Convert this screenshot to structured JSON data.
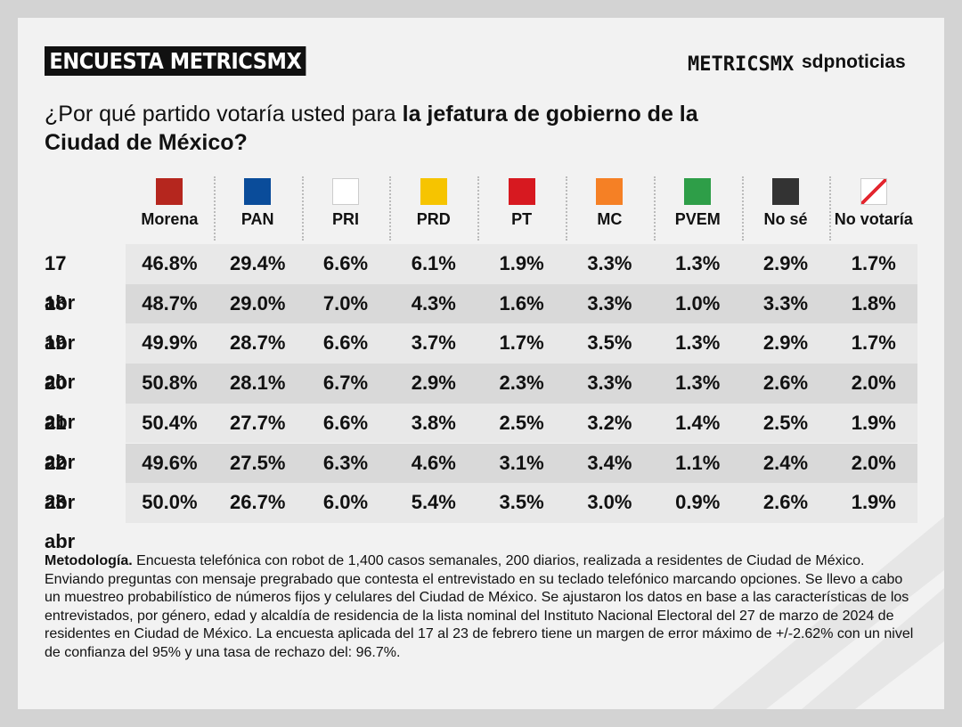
{
  "header": {
    "tag": "ENCUESTA METRICSMX",
    "logos": [
      "METRICSMX",
      "sdpnoticias"
    ]
  },
  "question": {
    "plain": "¿Por qué partido votaría usted para ",
    "bold": "la jefatura de gobierno de la Ciudad de México?"
  },
  "table": {
    "columns": [
      "Morena",
      "PAN",
      "PRI",
      "PRD",
      "PT",
      "MC",
      "PVEM",
      "No sé",
      "No votaría"
    ],
    "rows": [
      {
        "date": "17 abr",
        "values": [
          "46.8%",
          "29.4%",
          "6.6%",
          "6.1%",
          "1.9%",
          "3.3%",
          "1.3%",
          "2.9%",
          "1.7%"
        ]
      },
      {
        "date": "18 abr",
        "values": [
          "48.7%",
          "29.0%",
          "7.0%",
          "4.3%",
          "1.6%",
          "3.3%",
          "1.0%",
          "3.3%",
          "1.8%"
        ]
      },
      {
        "date": "19 abr",
        "values": [
          "49.9%",
          "28.7%",
          "6.6%",
          "3.7%",
          "1.7%",
          "3.5%",
          "1.3%",
          "2.9%",
          "1.7%"
        ]
      },
      {
        "date": "20 abr",
        "values": [
          "50.8%",
          "28.1%",
          "6.7%",
          "2.9%",
          "2.3%",
          "3.3%",
          "1.3%",
          "2.6%",
          "2.0%"
        ]
      },
      {
        "date": "21 abr",
        "values": [
          "50.4%",
          "27.7%",
          "6.6%",
          "3.8%",
          "2.5%",
          "3.2%",
          "1.4%",
          "2.5%",
          "1.9%"
        ]
      },
      {
        "date": "22 abr",
        "values": [
          "49.6%",
          "27.5%",
          "6.3%",
          "4.6%",
          "3.1%",
          "3.4%",
          "1.1%",
          "2.4%",
          "2.0%"
        ]
      },
      {
        "date": "23 abr",
        "values": [
          "50.0%",
          "26.7%",
          "6.0%",
          "5.4%",
          "3.5%",
          "3.0%",
          "0.9%",
          "2.6%",
          "1.9%"
        ]
      }
    ]
  },
  "methodology": {
    "label": "Metodología.",
    "text": " Encuesta telefónica con robot de 1,400 casos semanales, 200 diarios, realizada a residentes de Ciudad de México. Enviando preguntas con mensaje pregrabado que contesta el entrevistado en su teclado telefónico marcando opciones. Se llevo a cabo un muestreo probabilístico de números fijos y celulares del Ciudad de México. Se ajustaron los datos en base a las características de los entrevistados, por género, edad y alcaldía de residencia de la lista nominal del Instituto Nacional Electoral del 27 de marzo de 2024 de residentes en Ciudad de México. La encuesta aplicada del 17 al 23 de febrero tiene un margen de error máximo de +/-2.62% con un nivel de confianza del 95% y una tasa de rechazo del: 96.7%."
  }
}
